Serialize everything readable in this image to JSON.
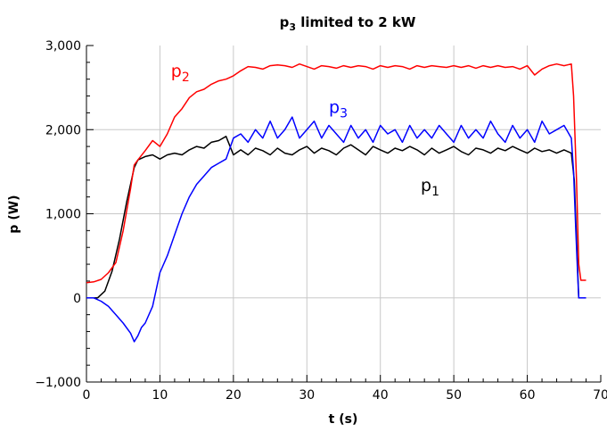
{
  "chart_data": {
    "type": "line",
    "title_main": "p",
    "title_sub": "3",
    "title_rest": " limited to 2 kW",
    "xlabel": "t (s)",
    "ylabel": "p (W)",
    "xlim": [
      0,
      70
    ],
    "ylim": [
      -1000,
      3000
    ],
    "x_ticks": [
      0,
      10,
      20,
      30,
      40,
      50,
      60,
      70
    ],
    "y_ticks": [
      -1000,
      0,
      1000,
      2000,
      3000
    ],
    "x_tick_labels": [
      "0",
      "10",
      "20",
      "30",
      "40",
      "50",
      "60",
      "70"
    ],
    "y_tick_labels": [
      "−1,000",
      "0",
      "1,000",
      "2,000",
      "3,000"
    ],
    "grid": true,
    "series": [
      {
        "key": "p1",
        "label_main": "p",
        "label_sub": "1",
        "color": "#000000",
        "label_at": [
          45.5,
          1270
        ],
        "points": [
          [
            0,
            0
          ],
          [
            1.5,
            0
          ],
          [
            2.5,
            80
          ],
          [
            3.5,
            320
          ],
          [
            4.5,
            700
          ],
          [
            5.5,
            1150
          ],
          [
            6.5,
            1550
          ],
          [
            7,
            1640
          ],
          [
            8,
            1680
          ],
          [
            9,
            1700
          ],
          [
            10,
            1650
          ],
          [
            11,
            1700
          ],
          [
            12,
            1720
          ],
          [
            13,
            1700
          ],
          [
            14,
            1760
          ],
          [
            15,
            1800
          ],
          [
            16,
            1780
          ],
          [
            17,
            1850
          ],
          [
            18,
            1870
          ],
          [
            19,
            1920
          ],
          [
            20,
            1700
          ],
          [
            21,
            1760
          ],
          [
            22,
            1700
          ],
          [
            23,
            1780
          ],
          [
            24,
            1750
          ],
          [
            25,
            1700
          ],
          [
            26,
            1780
          ],
          [
            27,
            1720
          ],
          [
            28,
            1700
          ],
          [
            29,
            1760
          ],
          [
            30,
            1800
          ],
          [
            31,
            1720
          ],
          [
            32,
            1780
          ],
          [
            33,
            1750
          ],
          [
            34,
            1700
          ],
          [
            35,
            1780
          ],
          [
            36,
            1820
          ],
          [
            37,
            1760
          ],
          [
            38,
            1700
          ],
          [
            39,
            1800
          ],
          [
            40,
            1760
          ],
          [
            41,
            1720
          ],
          [
            42,
            1780
          ],
          [
            43,
            1750
          ],
          [
            44,
            1800
          ],
          [
            45,
            1760
          ],
          [
            46,
            1700
          ],
          [
            47,
            1780
          ],
          [
            48,
            1720
          ],
          [
            49,
            1760
          ],
          [
            50,
            1800
          ],
          [
            51,
            1740
          ],
          [
            52,
            1700
          ],
          [
            53,
            1780
          ],
          [
            54,
            1760
          ],
          [
            55,
            1720
          ],
          [
            56,
            1780
          ],
          [
            57,
            1750
          ],
          [
            58,
            1800
          ],
          [
            59,
            1760
          ],
          [
            60,
            1720
          ],
          [
            61,
            1780
          ],
          [
            62,
            1740
          ],
          [
            63,
            1760
          ],
          [
            64,
            1720
          ],
          [
            65,
            1760
          ],
          [
            66,
            1720
          ],
          [
            66.4,
            1400
          ],
          [
            66.7,
            700
          ],
          [
            67,
            0
          ],
          [
            68,
            0
          ]
        ]
      },
      {
        "key": "p2",
        "label_main": "p",
        "label_sub": "2",
        "color": "#ff0000",
        "label_at": [
          11.5,
          2630
        ],
        "points": [
          [
            0,
            180
          ],
          [
            1,
            190
          ],
          [
            2,
            220
          ],
          [
            3,
            300
          ],
          [
            4,
            420
          ],
          [
            5,
            800
          ],
          [
            6,
            1300
          ],
          [
            6.5,
            1580
          ],
          [
            7,
            1640
          ],
          [
            8,
            1750
          ],
          [
            9,
            1870
          ],
          [
            10,
            1800
          ],
          [
            11,
            1950
          ],
          [
            12,
            2150
          ],
          [
            13,
            2250
          ],
          [
            14,
            2380
          ],
          [
            15,
            2450
          ],
          [
            16,
            2480
          ],
          [
            17,
            2540
          ],
          [
            18,
            2580
          ],
          [
            19,
            2600
          ],
          [
            20,
            2640
          ],
          [
            21,
            2700
          ],
          [
            22,
            2750
          ],
          [
            23,
            2740
          ],
          [
            24,
            2720
          ],
          [
            25,
            2760
          ],
          [
            26,
            2770
          ],
          [
            27,
            2760
          ],
          [
            28,
            2740
          ],
          [
            29,
            2780
          ],
          [
            30,
            2750
          ],
          [
            31,
            2720
          ],
          [
            32,
            2760
          ],
          [
            33,
            2750
          ],
          [
            34,
            2730
          ],
          [
            35,
            2760
          ],
          [
            36,
            2740
          ],
          [
            37,
            2760
          ],
          [
            38,
            2750
          ],
          [
            39,
            2720
          ],
          [
            40,
            2760
          ],
          [
            41,
            2740
          ],
          [
            42,
            2760
          ],
          [
            43,
            2750
          ],
          [
            44,
            2720
          ],
          [
            45,
            2760
          ],
          [
            46,
            2740
          ],
          [
            47,
            2760
          ],
          [
            48,
            2750
          ],
          [
            49,
            2740
          ],
          [
            50,
            2760
          ],
          [
            51,
            2740
          ],
          [
            52,
            2760
          ],
          [
            53,
            2730
          ],
          [
            54,
            2760
          ],
          [
            55,
            2740
          ],
          [
            56,
            2760
          ],
          [
            57,
            2740
          ],
          [
            58,
            2750
          ],
          [
            59,
            2720
          ],
          [
            60,
            2760
          ],
          [
            61,
            2650
          ],
          [
            62,
            2720
          ],
          [
            63,
            2760
          ],
          [
            64,
            2780
          ],
          [
            65,
            2760
          ],
          [
            66,
            2780
          ],
          [
            66.3,
            2400
          ],
          [
            66.7,
            1400
          ],
          [
            67,
            400
          ],
          [
            67.3,
            210
          ],
          [
            68,
            210
          ]
        ]
      },
      {
        "key": "p3",
        "label_main": "p",
        "label_sub": "3",
        "color": "#0000ff",
        "label_at": [
          33,
          2200
        ],
        "points": [
          [
            0,
            0
          ],
          [
            1,
            0
          ],
          [
            2,
            -40
          ],
          [
            3,
            -100
          ],
          [
            4,
            -200
          ],
          [
            5,
            -300
          ],
          [
            6,
            -420
          ],
          [
            6.5,
            -520
          ],
          [
            7,
            -450
          ],
          [
            7.5,
            -350
          ],
          [
            8,
            -300
          ],
          [
            9,
            -100
          ],
          [
            10,
            300
          ],
          [
            11,
            500
          ],
          [
            12,
            750
          ],
          [
            13,
            1000
          ],
          [
            14,
            1200
          ],
          [
            15,
            1350
          ],
          [
            16,
            1450
          ],
          [
            17,
            1550
          ],
          [
            18,
            1600
          ],
          [
            19,
            1650
          ],
          [
            20,
            1900
          ],
          [
            21,
            1950
          ],
          [
            22,
            1850
          ],
          [
            23,
            2000
          ],
          [
            24,
            1900
          ],
          [
            25,
            2100
          ],
          [
            26,
            1900
          ],
          [
            27,
            2000
          ],
          [
            28,
            2150
          ],
          [
            29,
            1900
          ],
          [
            30,
            2000
          ],
          [
            31,
            2100
          ],
          [
            32,
            1900
          ],
          [
            33,
            2050
          ],
          [
            34,
            1950
          ],
          [
            35,
            1850
          ],
          [
            36,
            2050
          ],
          [
            37,
            1900
          ],
          [
            38,
            2000
          ],
          [
            39,
            1850
          ],
          [
            40,
            2050
          ],
          [
            41,
            1950
          ],
          [
            42,
            2000
          ],
          [
            43,
            1850
          ],
          [
            44,
            2050
          ],
          [
            45,
            1900
          ],
          [
            46,
            2000
          ],
          [
            47,
            1900
          ],
          [
            48,
            2050
          ],
          [
            49,
            1950
          ],
          [
            50,
            1850
          ],
          [
            51,
            2050
          ],
          [
            52,
            1900
          ],
          [
            53,
            2000
          ],
          [
            54,
            1900
          ],
          [
            55,
            2100
          ],
          [
            56,
            1950
          ],
          [
            57,
            1850
          ],
          [
            58,
            2050
          ],
          [
            59,
            1900
          ],
          [
            60,
            2000
          ],
          [
            61,
            1850
          ],
          [
            62,
            2100
          ],
          [
            63,
            1950
          ],
          [
            64,
            2000
          ],
          [
            65,
            2050
          ],
          [
            66,
            1900
          ],
          [
            66.3,
            1500
          ],
          [
            66.6,
            800
          ],
          [
            66.9,
            200
          ],
          [
            67,
            0
          ],
          [
            68,
            0
          ]
        ]
      }
    ]
  }
}
